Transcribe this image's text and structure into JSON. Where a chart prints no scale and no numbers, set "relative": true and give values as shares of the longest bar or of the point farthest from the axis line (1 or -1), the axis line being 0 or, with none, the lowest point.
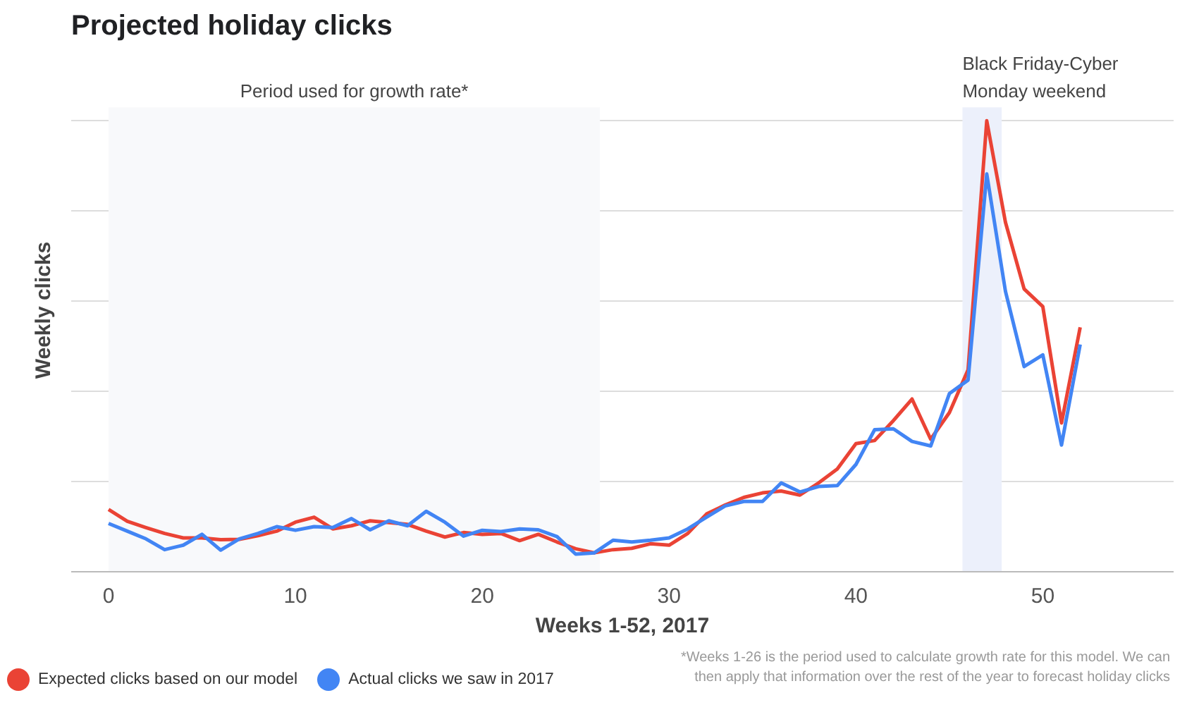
{
  "chart_data": {
    "type": "line",
    "title": "Projected holiday clicks",
    "xlabel": "Weeks 1-52, 2017",
    "ylabel": "Weekly clicks",
    "relative": true,
    "x": [
      0,
      1,
      2,
      3,
      4,
      5,
      6,
      7,
      8,
      9,
      10,
      11,
      12,
      13,
      14,
      15,
      16,
      17,
      18,
      19,
      20,
      21,
      22,
      23,
      24,
      25,
      26,
      27,
      28,
      29,
      30,
      31,
      32,
      33,
      34,
      35,
      36,
      37,
      38,
      39,
      40,
      41,
      42,
      43,
      44,
      45,
      46,
      47,
      48,
      49,
      50,
      51,
      52
    ],
    "xlim": [
      -2,
      57
    ],
    "xticks": [
      0,
      10,
      20,
      30,
      40,
      50
    ],
    "series": [
      {
        "name": "Expected clicks based on our model",
        "color": "#ea4335",
        "values": [
          0.138,
          0.112,
          0.098,
          0.085,
          0.075,
          0.075,
          0.071,
          0.072,
          0.08,
          0.09,
          0.11,
          0.121,
          0.095,
          0.102,
          0.113,
          0.109,
          0.105,
          0.09,
          0.077,
          0.087,
          0.083,
          0.085,
          0.069,
          0.083,
          0.066,
          0.051,
          0.042,
          0.049,
          0.052,
          0.062,
          0.059,
          0.085,
          0.128,
          0.148,
          0.165,
          0.175,
          0.179,
          0.17,
          0.197,
          0.228,
          0.284,
          0.291,
          0.335,
          0.383,
          0.294,
          0.353,
          0.448,
          1.0,
          0.775,
          0.627,
          0.588,
          0.33,
          0.542
        ]
      },
      {
        "name": "Actual clicks we saw in 2017",
        "color": "#4285f4",
        "values": [
          0.107,
          0.09,
          0.073,
          0.049,
          0.059,
          0.083,
          0.048,
          0.073,
          0.085,
          0.1,
          0.092,
          0.1,
          0.098,
          0.118,
          0.093,
          0.113,
          0.102,
          0.134,
          0.11,
          0.079,
          0.092,
          0.089,
          0.095,
          0.093,
          0.078,
          0.039,
          0.042,
          0.07,
          0.066,
          0.07,
          0.075,
          0.095,
          0.121,
          0.146,
          0.156,
          0.156,
          0.197,
          0.177,
          0.189,
          0.191,
          0.238,
          0.315,
          0.317,
          0.289,
          0.279,
          0.395,
          0.425,
          0.882,
          0.622,
          0.455,
          0.481,
          0.281,
          0.504
        ]
      }
    ],
    "bands": [
      {
        "axis": "x",
        "from": 0,
        "to": 26.3,
        "label": "Period used for growth rate*",
        "color": "#f8f9fb"
      },
      {
        "axis": "x",
        "from": 45.7,
        "to": 47.8,
        "label": "Black Friday-Cyber\nMonday weekend",
        "color": "#ecf0fb"
      }
    ],
    "annotations": [
      "*Weeks 1-26 is the period used to calculate growth rate for this model. We can\nthen apply that information over the rest of the year to forecast holiday clicks"
    ],
    "grid": "y",
    "legend": "bottom left"
  }
}
